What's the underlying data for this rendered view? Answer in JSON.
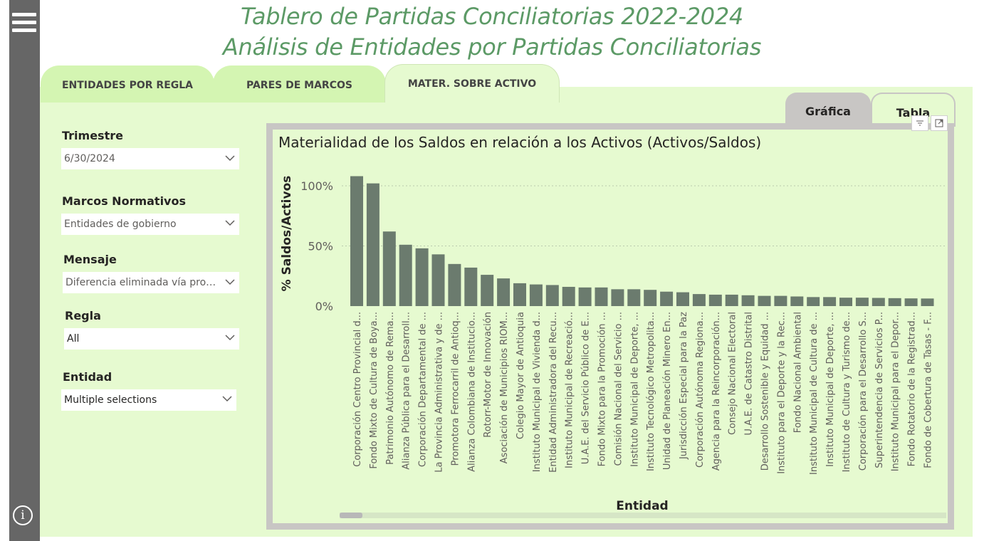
{
  "header": {
    "title_line1": "Tablero de Partidas Conciliatorias 2022-2024",
    "title_line2": "Análisis de Entidades por Partidas Conciliatorias"
  },
  "tabs": [
    {
      "label": "ENTIDADES POR REGLA",
      "active": false
    },
    {
      "label": "PARES DE MARCOS",
      "active": false
    },
    {
      "label": "MATER. SOBRE ACTIVO",
      "active": true
    }
  ],
  "view_toggle": {
    "grafica": "Gráfica",
    "tabla": "Tabla"
  },
  "filters": {
    "trimestre": {
      "label": "Trimestre",
      "value": "6/30/2024"
    },
    "marcos": {
      "label": "Marcos Normativos",
      "value": "Entidades de gobierno"
    },
    "mensaje": {
      "label": "Mensaje",
      "value": "Diferencia eliminada vía proceso de conciliación"
    },
    "regla": {
      "label": "Regla",
      "value": "All"
    },
    "entidad": {
      "label": "Entidad",
      "value": "Multiple selections"
    }
  },
  "icons": {
    "menu": "hamburger-menu-icon",
    "info": "info-icon",
    "filter": "filter-icon",
    "focus": "focus-mode-icon",
    "chevron": "chevron-down-icon"
  },
  "colors": {
    "bar": "#6b7b6e",
    "panel": "#e6fad0",
    "tab": "#d4f5b2",
    "title": "#5c9a66",
    "rail": "#666666"
  },
  "chart_data": {
    "type": "bar",
    "title": "Materialidad de los Saldos en relación a los Activos (Activos/Saldos)",
    "xlabel": "Entidad",
    "ylabel": "% Saldos/Activos",
    "ylim": [
      0,
      1.1
    ],
    "yticks": [
      0,
      0.5,
      1.0
    ],
    "ytick_labels": [
      "0%",
      "50%",
      "100%"
    ],
    "grid": true,
    "categories": [
      "Corporación Centro Provincial d...",
      "Fondo Mixto de Cultura de Boya...",
      "Patrimonio Autónomo de Rema...",
      "Alianza Pública para el Desarroll...",
      "Corporación Departamental de ...",
      "La Provincia Administrativa y de ...",
      "Promotora Ferrocarril de Antioq...",
      "Alianza Colombiana de Institucio...",
      "Rotorr-Motor de Innovación",
      "Asociación de Municipios RIOM...",
      "Colegio Mayor de Antioquia",
      "Instituto Municipal de Vivienda d...",
      "Entidad Administradora del Recu...",
      "Instituto Municipal de Recreació...",
      "U.A.E. del Servicio Público de E...",
      "Fondo Mixto para la Promoción ...",
      "Comisión Nacional del Servicio ...",
      "Instituto Municipal de Deporte, ...",
      "Instituto Tecnológico Metropolita...",
      "Unidad de Planeación Minero En...",
      "Jurisdicción Especial para la Paz",
      "Corporación Autónoma Regiona...",
      "Agencia para la Reincorporación...",
      "Consejo Nacional Electoral",
      "U.A.E. de Catastro Distrital",
      "Desarrollo Sostenible y Equidad ...",
      "Instituto para el Deporte y la Rec...",
      "Fondo Nacional Ambiental",
      "Instituto Municipal de Cultura de ...",
      "Instituto Municipal de Deporte, ...",
      "Instituto de Cultura y Turismo de...",
      "Corporación para el Desarrollo S...",
      "Superintendencia de Servicios P...",
      "Instituto Municipal para el Depor...",
      "Fondo Rotatorio de la Registrad...",
      "Fondo de Cobertura de Tasas - F..."
    ],
    "values": [
      1.08,
      1.02,
      0.62,
      0.51,
      0.48,
      0.43,
      0.35,
      0.32,
      0.26,
      0.23,
      0.19,
      0.18,
      0.175,
      0.16,
      0.155,
      0.155,
      0.14,
      0.14,
      0.135,
      0.12,
      0.115,
      0.1,
      0.095,
      0.095,
      0.09,
      0.085,
      0.085,
      0.08,
      0.075,
      0.075,
      0.07,
      0.07,
      0.068,
      0.066,
      0.064,
      0.063
    ]
  }
}
